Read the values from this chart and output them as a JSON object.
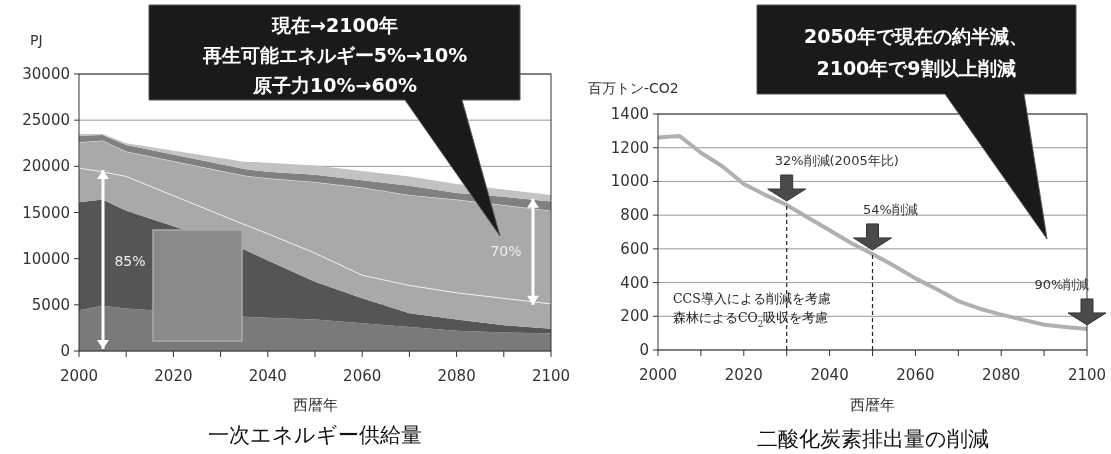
{
  "chart_data": [
    {
      "type": "area",
      "stacked": true,
      "title": "一次エネルギー供給量",
      "xlabel": "西暦年",
      "ylabel": "PJ",
      "x": [
        2000,
        2005,
        2010,
        2035,
        2040,
        2050,
        2060,
        2070,
        2080,
        2090,
        2100
      ],
      "series": [
        {
          "color": "#7a7a7a",
          "values": [
            4400,
            4900,
            4600,
            3700,
            3600,
            3400,
            3000,
            2600,
            2200,
            2000,
            1900
          ]
        },
        {
          "color": "#555555",
          "values": [
            11700,
            11500,
            10600,
            7300,
            6200,
            4100,
            2700,
            1500,
            1200,
            800,
            500
          ]
        },
        {
          "color": "#a9a9a9",
          "values": [
            3700,
            3000,
            3700,
            2700,
            2900,
            3100,
            2500,
            3000,
            2900,
            2900,
            2700
          ]
        },
        {
          "color": "#a9a9a9",
          "values": [
            2800,
            3400,
            2700,
            5300,
            6000,
            7700,
            9500,
            9800,
            10100,
            10100,
            10100
          ]
        },
        {
          "color": "#808080",
          "values": [
            700,
            600,
            700,
            700,
            700,
            800,
            800,
            1000,
            700,
            900,
            1000
          ]
        },
        {
          "color": "#c2c2c2",
          "values": [
            200,
            100,
            200,
            800,
            1000,
            1000,
            1000,
            1000,
            1000,
            800,
            700
          ]
        }
      ],
      "xlim": [
        2000,
        2100
      ],
      "xticks": [
        2000,
        {
          "value": 2010,
          "label": null
        },
        2020,
        {
          "value": 2030,
          "label": null
        },
        2040,
        {
          "value": 2050,
          "label": null
        },
        2060,
        {
          "value": 2070,
          "label": null
        },
        2080,
        {
          "value": 2090,
          "label": null
        },
        2100
      ],
      "ylim": [
        0,
        30000
      ],
      "yticks": [
        0,
        5000,
        10000,
        15000,
        20000,
        25000,
        30000
      ],
      "grid": "y",
      "annotations": [
        "現在→2100年",
        "再生可能エネルギー5%→10%",
        "原子力10%→60%",
        "85%",
        "70%"
      ]
    },
    {
      "type": "line",
      "title": "二酸化炭素排出量の削減",
      "xlabel": "西暦年",
      "ylabel": "百万トン-CO2",
      "x": [
        2000,
        2005,
        2010,
        2015,
        2020,
        2025,
        2030,
        2035,
        2040,
        2045,
        2050,
        2055,
        2060,
        2065,
        2070,
        2075,
        2080,
        2085,
        2090,
        2095,
        2100
      ],
      "series": [
        {
          "color": "#b0b0b0",
          "values": [
            1260,
            1270,
            1170,
            1090,
            985,
            920,
            860,
            785,
            710,
            635,
            570,
            500,
            425,
            360,
            290,
            245,
            210,
            180,
            150,
            137,
            125
          ]
        }
      ],
      "xlim": [
        2000,
        2100
      ],
      "xticks": [
        2000,
        {
          "value": 2010,
          "label": null
        },
        2020,
        {
          "value": 2030,
          "label": null
        },
        2040,
        {
          "value": 2050,
          "label": null
        },
        2060,
        {
          "value": 2070,
          "label": null
        },
        2080,
        {
          "value": 2090,
          "label": null
        },
        2100
      ],
      "ylim": [
        0,
        1400
      ],
      "yticks": [
        0,
        200,
        400,
        600,
        800,
        1000,
        1200,
        1400
      ],
      "grid": "y",
      "ref_lines": [
        {
          "axis": "x",
          "value": 2030,
          "line_style": "dashed"
        },
        {
          "axis": "x",
          "value": 2050,
          "line_style": "dashed"
        }
      ],
      "annotations": [
        "2050年で現在の約半減、",
        "2100年で9割以上削減",
        {
          "text": "32%削減(2005年比)",
          "x": 2030,
          "y": 860
        },
        {
          "text": "54%削減",
          "x": 2050,
          "y": 570
        },
        {
          "text": "90%削減",
          "x": 2100,
          "y": 125
        },
        "CCS導入による削減を考慮",
        "森林によるCO$_{2}$吸収を考慮"
      ]
    }
  ]
}
